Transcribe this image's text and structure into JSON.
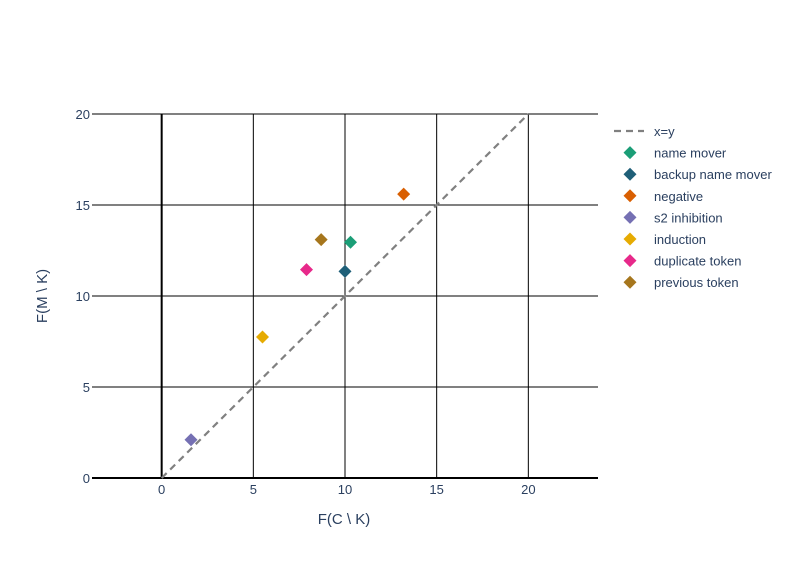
{
  "chart_data": {
    "type": "scatter",
    "title": "",
    "xlabel": "F(C \\ K)",
    "ylabel": "F(M \\ K)",
    "xlim": [
      -3.8,
      23.8
    ],
    "ylim": [
      0,
      20
    ],
    "xticks": [
      0,
      5,
      10,
      15,
      20
    ],
    "yticks": [
      0,
      5,
      10,
      15,
      20
    ],
    "xtick_labels": [
      "0",
      "5",
      "10",
      "15",
      "20"
    ],
    "ytick_labels": [
      "0",
      "5",
      "10",
      "15",
      "20"
    ],
    "grid": true,
    "legend_position": "right",
    "reference_line": {
      "name": "x=y",
      "x": [
        0,
        20
      ],
      "y": [
        0,
        20
      ],
      "color": "#808080",
      "dash": "dashed"
    },
    "series": [
      {
        "name": "name mover",
        "color": "#1b9e77",
        "marker": "diamond",
        "x": [
          10.3
        ],
        "y": [
          12.95
        ]
      },
      {
        "name": "backup name mover",
        "color": "#1f5f78",
        "marker": "diamond",
        "x": [
          10.0
        ],
        "y": [
          11.35
        ]
      },
      {
        "name": "negative",
        "color": "#d95f02",
        "marker": "diamond",
        "x": [
          13.2
        ],
        "y": [
          15.6
        ]
      },
      {
        "name": "s2 inhibition",
        "color": "#7570b3",
        "marker": "diamond",
        "x": [
          1.6
        ],
        "y": [
          2.1
        ]
      },
      {
        "name": "induction",
        "color": "#e6ab02",
        "marker": "diamond",
        "x": [
          5.5
        ],
        "y": [
          7.75
        ]
      },
      {
        "name": "duplicate token",
        "color": "#e7298a",
        "marker": "diamond",
        "x": [
          7.9
        ],
        "y": [
          11.45
        ]
      },
      {
        "name": "previous token",
        "color": "#a6761d",
        "marker": "diamond",
        "x": [
          8.7
        ],
        "y": [
          13.1
        ]
      }
    ]
  }
}
